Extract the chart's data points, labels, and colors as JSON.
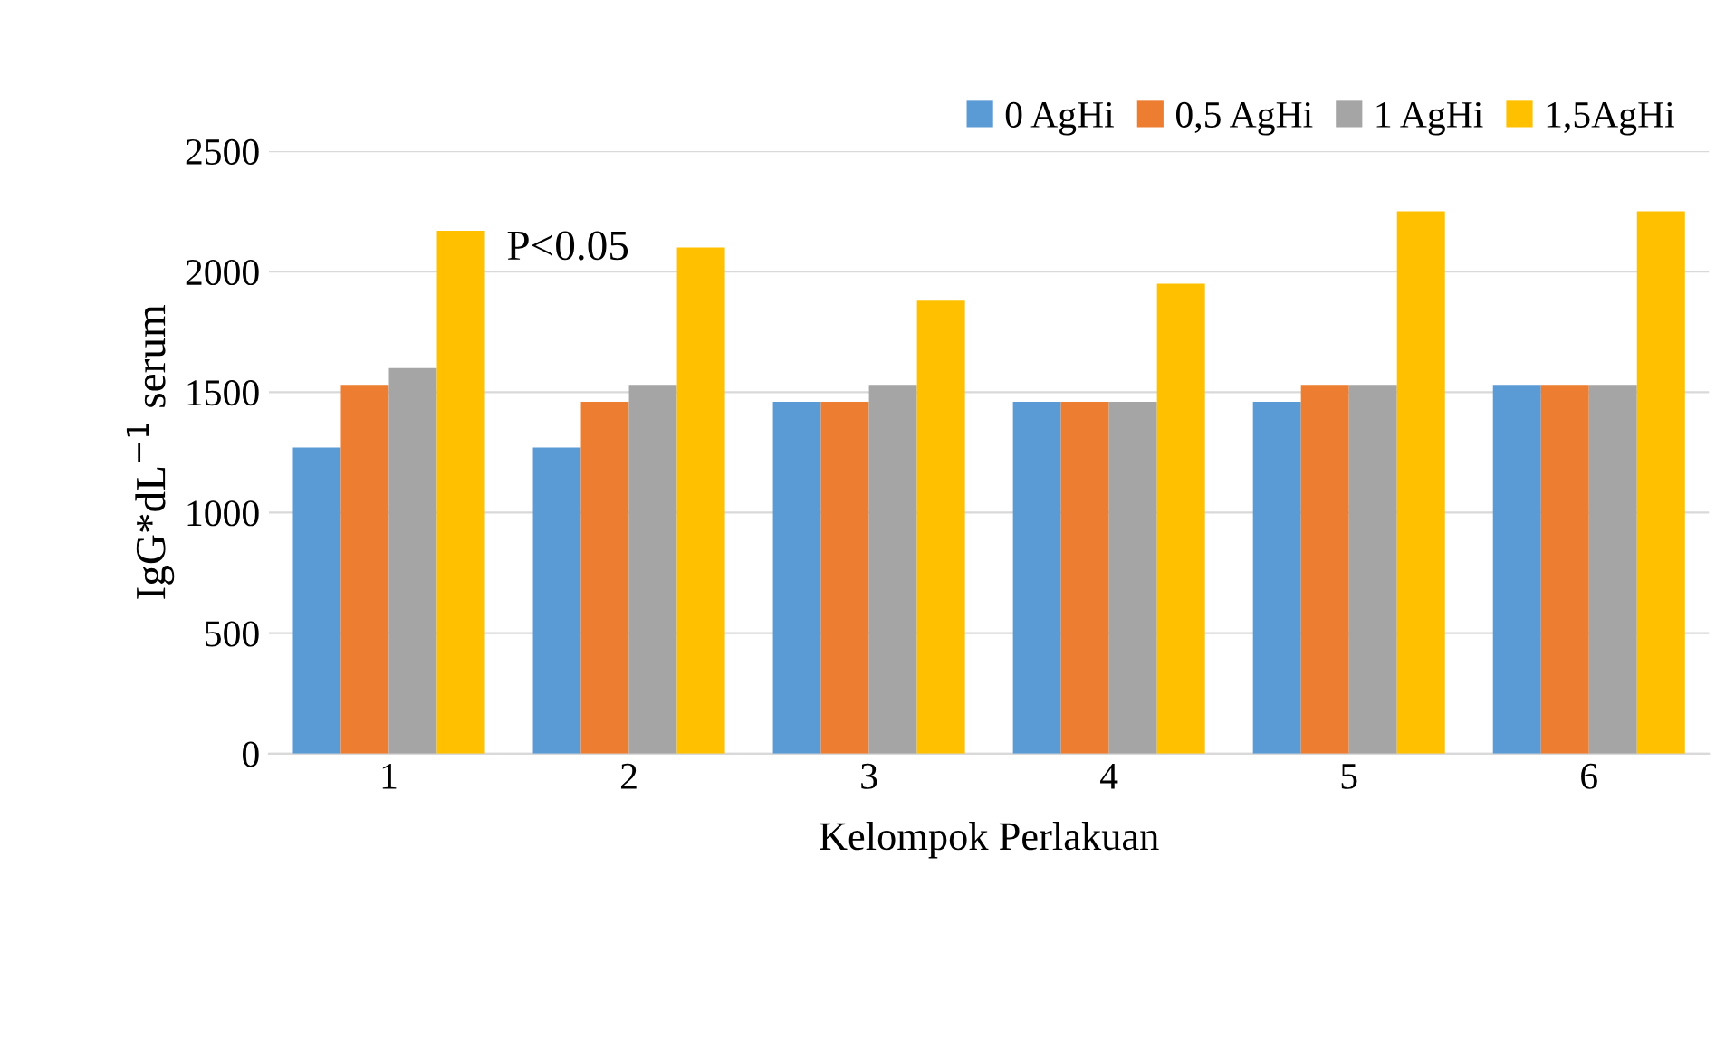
{
  "chart_data": {
    "type": "bar",
    "xlabel": "Kelompok Perlakuan",
    "ylabel": "IgG*dL$^{−1}$ serum",
    "categories": [
      "1",
      "2",
      "3",
      "4",
      "5",
      "6"
    ],
    "series": [
      {
        "name": "0 AgHi",
        "color": "#5b9bd5",
        "values": [
          1270,
          1270,
          1460,
          1460,
          1460,
          1530
        ]
      },
      {
        "name": "0,5 AgHi",
        "color": "#ed7d31",
        "values": [
          1530,
          1460,
          1460,
          1460,
          1530,
          1530
        ]
      },
      {
        "name": "1 AgHi",
        "color": "#a5a5a5",
        "values": [
          1600,
          1530,
          1530,
          1460,
          1530,
          1530
        ]
      },
      {
        "name": "1,5AgHi",
        "color": "#ffc000",
        "values": [
          2170,
          2100,
          1880,
          1950,
          2250,
          2250
        ]
      }
    ],
    "ylim": [
      0,
      2500
    ],
    "yticks": [
      0,
      500,
      1000,
      1500,
      2000,
      2500
    ],
    "grid": "y",
    "legend": "top right",
    "annotations": [
      "P<0.05"
    ]
  }
}
